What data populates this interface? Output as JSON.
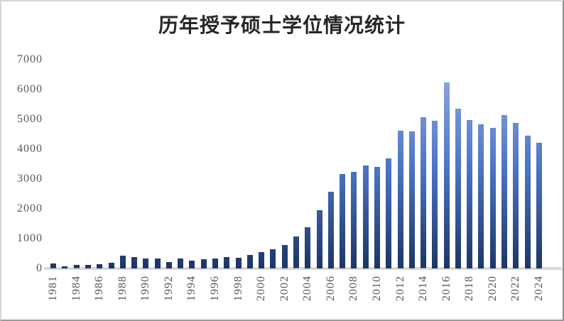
{
  "window": {
    "background": "#FFFFFF",
    "border_color_light": "#D6D6D6",
    "border_color_dark": "#8A8A8A"
  },
  "chart_data": {
    "type": "bar",
    "title": "历年授予硕士学位情况统计",
    "categories": [
      1981,
      1982,
      1984,
      1985,
      1986,
      1987,
      1988,
      1989,
      1990,
      1991,
      1992,
      1993,
      1994,
      1995,
      1996,
      1997,
      1998,
      1999,
      2000,
      2001,
      2002,
      2003,
      2004,
      2005,
      2006,
      2007,
      2008,
      2009,
      2010,
      2011,
      2012,
      2013,
      2014,
      2015,
      2016,
      2017,
      2018,
      2019,
      2020,
      2021,
      2022,
      2023,
      2024
    ],
    "values": [
      160,
      70,
      110,
      115,
      140,
      200,
      440,
      390,
      330,
      345,
      220,
      330,
      260,
      310,
      330,
      390,
      360,
      455,
      555,
      640,
      780,
      1060,
      1380,
      1960,
      2580,
      3160,
      3250,
      3460,
      3410,
      3700,
      4615,
      4590,
      5060,
      4960,
      6250,
      5360,
      4985,
      4840,
      4725,
      5140,
      4890,
      4460,
      4220
    ],
    "xlabel": "",
    "ylabel": "",
    "ylim": [
      0,
      7000
    ],
    "yticks": [
      0,
      1000,
      2000,
      3000,
      4000,
      5000,
      6000,
      7000
    ],
    "x_tick_label_interval": 2,
    "visible_x_tick_labels": [
      "1981",
      "1984",
      "1986",
      "1988",
      "1990",
      "1992",
      "1994",
      "1996",
      "1998",
      "2000",
      "2002",
      "2004",
      "2006",
      "2008",
      "2010",
      "2012",
      "2014",
      "2016",
      "2018",
      "2020",
      "2022",
      "2024"
    ],
    "grid": false,
    "legend": "none",
    "bar_gradient_top": "#9BB0E2",
    "bar_gradient_mid": "#4B74C6",
    "bar_gradient_bottom": "#1C3565",
    "axis_line_color": "#D9D9D9",
    "axis_label_color": "#595959",
    "title_color": "#262626"
  }
}
